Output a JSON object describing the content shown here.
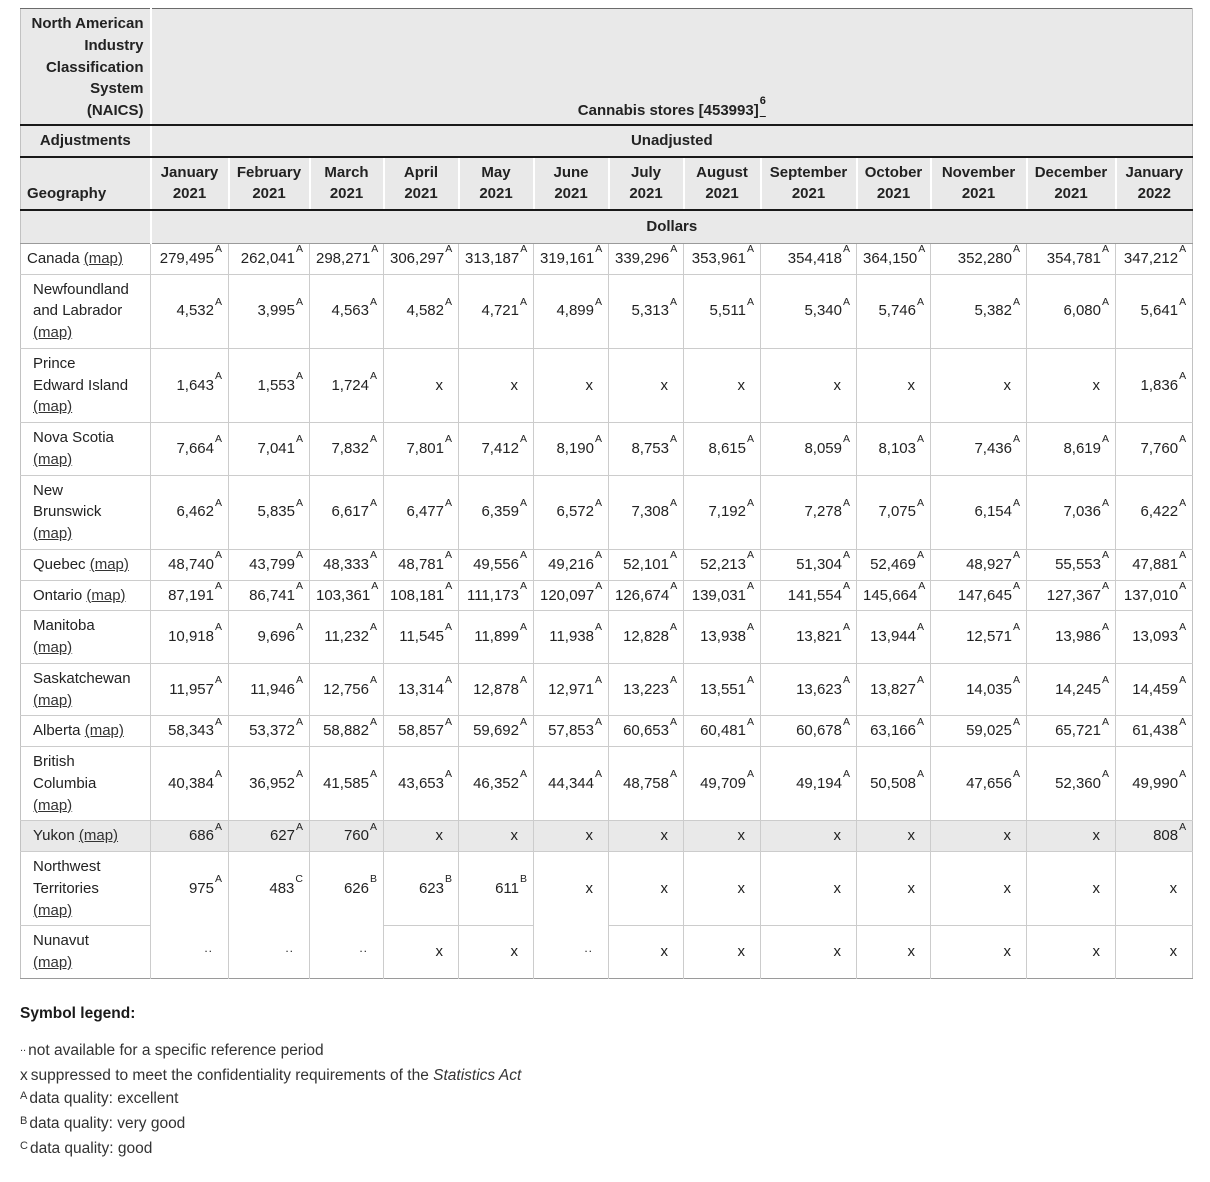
{
  "table": {
    "naics_label": "North American Industry Classification System (NAICS)",
    "naics_value": "Cannabis stores [453993]",
    "naics_footnote": "6",
    "adjustments_label": "Adjustments",
    "adjustments_value": "Unadjusted",
    "geography_label": "Geography",
    "unit_label": "Dollars",
    "map_link_label": "(map)",
    "header_bg": "#e9e9e9",
    "columns": [
      {
        "month": "January",
        "year": "2021"
      },
      {
        "month": "February",
        "year": "2021"
      },
      {
        "month": "March",
        "year": "2021"
      },
      {
        "month": "April",
        "year": "2021"
      },
      {
        "month": "May",
        "year": "2021"
      },
      {
        "month": "June",
        "year": "2021"
      },
      {
        "month": "July",
        "year": "2021"
      },
      {
        "month": "August",
        "year": "2021"
      },
      {
        "month": "September",
        "year": "2021"
      },
      {
        "month": "October",
        "year": "2021"
      },
      {
        "month": "November",
        "year": "2021"
      },
      {
        "month": "December",
        "year": "2021"
      },
      {
        "month": "January",
        "year": "2022"
      }
    ],
    "rows": [
      {
        "name": "Canada",
        "indent": false,
        "shaded": false,
        "values": [
          {
            "v": "279,495",
            "q": "A"
          },
          {
            "v": "262,041",
            "q": "A"
          },
          {
            "v": "298,271",
            "q": "A"
          },
          {
            "v": "306,297",
            "q": "A"
          },
          {
            "v": "313,187",
            "q": "A"
          },
          {
            "v": "319,161",
            "q": "A"
          },
          {
            "v": "339,296",
            "q": "A"
          },
          {
            "v": "353,961",
            "q": "A"
          },
          {
            "v": "354,418",
            "q": "A"
          },
          {
            "v": "364,150",
            "q": "A"
          },
          {
            "v": "352,280",
            "q": "A"
          },
          {
            "v": "354,781",
            "q": "A"
          },
          {
            "v": "347,212",
            "q": "A"
          }
        ]
      },
      {
        "name": "Newfoundland and Labrador",
        "indent": true,
        "shaded": false,
        "values": [
          {
            "v": "4,532",
            "q": "A"
          },
          {
            "v": "3,995",
            "q": "A"
          },
          {
            "v": "4,563",
            "q": "A"
          },
          {
            "v": "4,582",
            "q": "A"
          },
          {
            "v": "4,721",
            "q": "A"
          },
          {
            "v": "4,899",
            "q": "A"
          },
          {
            "v": "5,313",
            "q": "A"
          },
          {
            "v": "5,511",
            "q": "A"
          },
          {
            "v": "5,340",
            "q": "A"
          },
          {
            "v": "5,746",
            "q": "A"
          },
          {
            "v": "5,382",
            "q": "A"
          },
          {
            "v": "6,080",
            "q": "A"
          },
          {
            "v": "5,641",
            "q": "A"
          }
        ]
      },
      {
        "name": "Prince Edward Island",
        "indent": true,
        "shaded": false,
        "values": [
          {
            "v": "1,643",
            "q": "A"
          },
          {
            "v": "1,553",
            "q": "A"
          },
          {
            "v": "1,724",
            "q": "A"
          },
          {
            "v": "x"
          },
          {
            "v": "x"
          },
          {
            "v": "x"
          },
          {
            "v": "x"
          },
          {
            "v": "x"
          },
          {
            "v": "x"
          },
          {
            "v": "x"
          },
          {
            "v": "x"
          },
          {
            "v": "x"
          },
          {
            "v": "1,836",
            "q": "A"
          }
        ]
      },
      {
        "name": "Nova Scotia",
        "indent": true,
        "shaded": false,
        "values": [
          {
            "v": "7,664",
            "q": "A"
          },
          {
            "v": "7,041",
            "q": "A"
          },
          {
            "v": "7,832",
            "q": "A"
          },
          {
            "v": "7,801",
            "q": "A"
          },
          {
            "v": "7,412",
            "q": "A"
          },
          {
            "v": "8,190",
            "q": "A"
          },
          {
            "v": "8,753",
            "q": "A"
          },
          {
            "v": "8,615",
            "q": "A"
          },
          {
            "v": "8,059",
            "q": "A"
          },
          {
            "v": "8,103",
            "q": "A"
          },
          {
            "v": "7,436",
            "q": "A"
          },
          {
            "v": "8,619",
            "q": "A"
          },
          {
            "v": "7,760",
            "q": "A"
          }
        ]
      },
      {
        "name": "New Brunswick",
        "indent": true,
        "shaded": false,
        "values": [
          {
            "v": "6,462",
            "q": "A"
          },
          {
            "v": "5,835",
            "q": "A"
          },
          {
            "v": "6,617",
            "q": "A"
          },
          {
            "v": "6,477",
            "q": "A"
          },
          {
            "v": "6,359",
            "q": "A"
          },
          {
            "v": "6,572",
            "q": "A"
          },
          {
            "v": "7,308",
            "q": "A"
          },
          {
            "v": "7,192",
            "q": "A"
          },
          {
            "v": "7,278",
            "q": "A"
          },
          {
            "v": "7,075",
            "q": "A"
          },
          {
            "v": "6,154",
            "q": "A"
          },
          {
            "v": "7,036",
            "q": "A"
          },
          {
            "v": "6,422",
            "q": "A"
          }
        ]
      },
      {
        "name": "Quebec",
        "indent": true,
        "shaded": false,
        "values": [
          {
            "v": "48,740",
            "q": "A"
          },
          {
            "v": "43,799",
            "q": "A"
          },
          {
            "v": "48,333",
            "q": "A"
          },
          {
            "v": "48,781",
            "q": "A"
          },
          {
            "v": "49,556",
            "q": "A"
          },
          {
            "v": "49,216",
            "q": "A"
          },
          {
            "v": "52,101",
            "q": "A"
          },
          {
            "v": "52,213",
            "q": "A"
          },
          {
            "v": "51,304",
            "q": "A"
          },
          {
            "v": "52,469",
            "q": "A"
          },
          {
            "v": "48,927",
            "q": "A"
          },
          {
            "v": "55,553",
            "q": "A"
          },
          {
            "v": "47,881",
            "q": "A"
          }
        ]
      },
      {
        "name": "Ontario",
        "indent": true,
        "shaded": false,
        "values": [
          {
            "v": "87,191",
            "q": "A"
          },
          {
            "v": "86,741",
            "q": "A"
          },
          {
            "v": "103,361",
            "q": "A"
          },
          {
            "v": "108,181",
            "q": "A"
          },
          {
            "v": "111,173",
            "q": "A"
          },
          {
            "v": "120,097",
            "q": "A"
          },
          {
            "v": "126,674",
            "q": "A"
          },
          {
            "v": "139,031",
            "q": "A"
          },
          {
            "v": "141,554",
            "q": "A"
          },
          {
            "v": "145,664",
            "q": "A"
          },
          {
            "v": "147,645",
            "q": "A"
          },
          {
            "v": "127,367",
            "q": "A"
          },
          {
            "v": "137,010",
            "q": "A"
          }
        ]
      },
      {
        "name": "Manitoba",
        "indent": true,
        "shaded": false,
        "values": [
          {
            "v": "10,918",
            "q": "A"
          },
          {
            "v": "9,696",
            "q": "A"
          },
          {
            "v": "11,232",
            "q": "A"
          },
          {
            "v": "11,545",
            "q": "A"
          },
          {
            "v": "11,899",
            "q": "A"
          },
          {
            "v": "11,938",
            "q": "A"
          },
          {
            "v": "12,828",
            "q": "A"
          },
          {
            "v": "13,938",
            "q": "A"
          },
          {
            "v": "13,821",
            "q": "A"
          },
          {
            "v": "13,944",
            "q": "A"
          },
          {
            "v": "12,571",
            "q": "A"
          },
          {
            "v": "13,986",
            "q": "A"
          },
          {
            "v": "13,093",
            "q": "A"
          }
        ]
      },
      {
        "name": "Saskatchewan",
        "indent": true,
        "shaded": false,
        "values": [
          {
            "v": "11,957",
            "q": "A"
          },
          {
            "v": "11,946",
            "q": "A"
          },
          {
            "v": "12,756",
            "q": "A"
          },
          {
            "v": "13,314",
            "q": "A"
          },
          {
            "v": "12,878",
            "q": "A"
          },
          {
            "v": "12,971",
            "q": "A"
          },
          {
            "v": "13,223",
            "q": "A"
          },
          {
            "v": "13,551",
            "q": "A"
          },
          {
            "v": "13,623",
            "q": "A"
          },
          {
            "v": "13,827",
            "q": "A"
          },
          {
            "v": "14,035",
            "q": "A"
          },
          {
            "v": "14,245",
            "q": "A"
          },
          {
            "v": "14,459",
            "q": "A"
          }
        ]
      },
      {
        "name": "Alberta",
        "indent": true,
        "shaded": false,
        "values": [
          {
            "v": "58,343",
            "q": "A"
          },
          {
            "v": "53,372",
            "q": "A"
          },
          {
            "v": "58,882",
            "q": "A"
          },
          {
            "v": "58,857",
            "q": "A"
          },
          {
            "v": "59,692",
            "q": "A"
          },
          {
            "v": "57,853",
            "q": "A"
          },
          {
            "v": "60,653",
            "q": "A"
          },
          {
            "v": "60,481",
            "q": "A"
          },
          {
            "v": "60,678",
            "q": "A"
          },
          {
            "v": "63,166",
            "q": "A"
          },
          {
            "v": "59,025",
            "q": "A"
          },
          {
            "v": "65,721",
            "q": "A"
          },
          {
            "v": "61,438",
            "q": "A"
          }
        ]
      },
      {
        "name": "British Columbia",
        "indent": true,
        "shaded": false,
        "values": [
          {
            "v": "40,384",
            "q": "A"
          },
          {
            "v": "36,952",
            "q": "A"
          },
          {
            "v": "41,585",
            "q": "A"
          },
          {
            "v": "43,653",
            "q": "A"
          },
          {
            "v": "46,352",
            "q": "A"
          },
          {
            "v": "44,344",
            "q": "A"
          },
          {
            "v": "48,758",
            "q": "A"
          },
          {
            "v": "49,709",
            "q": "A"
          },
          {
            "v": "49,194",
            "q": "A"
          },
          {
            "v": "50,508",
            "q": "A"
          },
          {
            "v": "47,656",
            "q": "A"
          },
          {
            "v": "52,360",
            "q": "A"
          },
          {
            "v": "49,990",
            "q": "A"
          }
        ]
      },
      {
        "name": "Yukon",
        "indent": true,
        "shaded": true,
        "values": [
          {
            "v": "686",
            "q": "A"
          },
          {
            "v": "627",
            "q": "A"
          },
          {
            "v": "760",
            "q": "A"
          },
          {
            "v": "x"
          },
          {
            "v": "x"
          },
          {
            "v": "x"
          },
          {
            "v": "x"
          },
          {
            "v": "x"
          },
          {
            "v": "x"
          },
          {
            "v": "x"
          },
          {
            "v": "x"
          },
          {
            "v": "x"
          },
          {
            "v": "808",
            "q": "A"
          }
        ]
      },
      {
        "name": "Northwest Territories",
        "indent": true,
        "shaded": false,
        "values": [
          {
            "v": "975",
            "q": "A"
          },
          {
            "v": "483",
            "q": "C"
          },
          {
            "v": "626",
            "q": "B"
          },
          {
            "v": "623",
            "q": "B"
          },
          {
            "v": "611",
            "q": "B"
          },
          {
            "v": "x"
          },
          {
            "v": "x"
          },
          {
            "v": "x"
          },
          {
            "v": "x"
          },
          {
            "v": "x"
          },
          {
            "v": "x"
          },
          {
            "v": "x"
          },
          {
            "v": "x"
          }
        ]
      },
      {
        "name": "Nunavut",
        "indent": true,
        "shaded": false,
        "values": [
          {
            "v": ".."
          },
          {
            "v": ".."
          },
          {
            "v": ".."
          },
          {
            "v": "x"
          },
          {
            "v": "x"
          },
          {
            "v": ".."
          },
          {
            "v": "x"
          },
          {
            "v": "x"
          },
          {
            "v": "x"
          },
          {
            "v": "x"
          },
          {
            "v": "x"
          },
          {
            "v": "x"
          },
          {
            "v": "x"
          }
        ]
      }
    ]
  },
  "legend": {
    "title": "Symbol legend:",
    "items": [
      {
        "symbol": "..",
        "text": "not available for a specific reference period"
      },
      {
        "symbol": "x",
        "text": "suppressed to meet the confidentiality requirements of the ",
        "italic": "Statistics Act"
      },
      {
        "symbol": "A",
        "text": "data quality: excellent"
      },
      {
        "symbol": "B",
        "text": "data quality: very good"
      },
      {
        "symbol": "C",
        "text": "data quality: good"
      }
    ]
  }
}
